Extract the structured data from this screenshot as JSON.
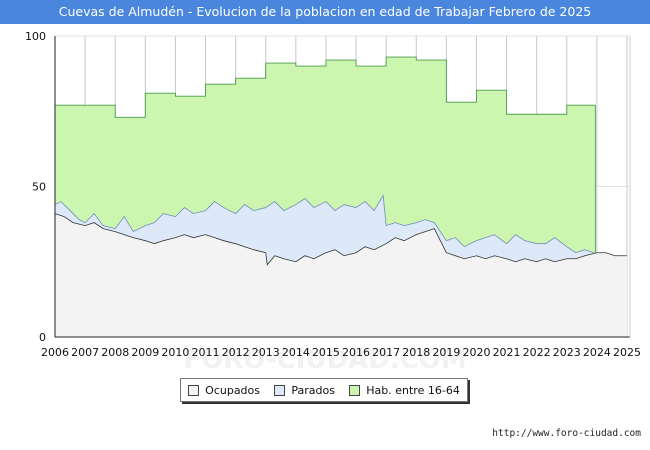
{
  "title": "Cuevas de Almudén - Evolucion de la poblacion en edad de Trabajar Febrero de 2025",
  "source": "http://www.foro-ciudad.com",
  "watermark": "FORO-CIUDAD.COM",
  "colors": {
    "title_bg": "#4a86de",
    "hab": "#ccf5b0",
    "hab_line": "#4d9a4d",
    "parados": "#dde9f8",
    "parados_line": "#6f8fb8",
    "ocupados": "#f3f3f3",
    "ocupados_line": "#333333"
  },
  "chart_data": {
    "type": "area",
    "xlabel": "",
    "ylabel": "",
    "xlim": [
      2006,
      2025.1
    ],
    "ylim": [
      0,
      100
    ],
    "yticks": [
      0,
      50,
      100
    ],
    "xticks": [
      "2006",
      "2007",
      "2008",
      "2009",
      "2010",
      "2011",
      "2012",
      "2013",
      "2014",
      "2015",
      "2016",
      "2017",
      "2018",
      "2019",
      "2020",
      "2021",
      "2022",
      "2023",
      "2024",
      "2025"
    ],
    "grid": true,
    "legend_position": "bottom",
    "legend": [
      "Ocupados",
      "Parados",
      "Hab. entre 16-64"
    ],
    "series": [
      {
        "name": "Hab. entre 16-64",
        "x": [
          2006,
          2008,
          2009,
          2010,
          2011,
          2012,
          2013,
          2014,
          2015,
          2016,
          2017,
          2018,
          2019,
          2020,
          2021,
          2022,
          2023,
          2023.95
        ],
        "values": [
          77,
          73,
          81,
          80,
          84,
          86,
          91,
          90,
          92,
          90,
          93,
          92,
          78,
          82,
          74,
          74,
          77,
          77
        ]
      },
      {
        "name": "Parados",
        "x": [
          2006,
          2006.2,
          2006.5,
          2006.8,
          2007,
          2007.3,
          2007.6,
          2008,
          2008.3,
          2008.6,
          2009,
          2009.3,
          2009.6,
          2010,
          2010.3,
          2010.6,
          2011,
          2011.3,
          2011.6,
          2012,
          2012.3,
          2012.6,
          2013,
          2013.3,
          2013.6,
          2014,
          2014.3,
          2014.6,
          2015,
          2015.3,
          2015.6,
          2016,
          2016.3,
          2016.6,
          2016.9,
          2017,
          2017.3,
          2017.6,
          2018,
          2018.3,
          2018.6,
          2019,
          2019.3,
          2019.6,
          2020,
          2020.3,
          2020.6,
          2021,
          2021.3,
          2021.6,
          2022,
          2022.3,
          2022.6,
          2023,
          2023.3,
          2023.6,
          2023.9
        ],
        "values": [
          44,
          45,
          42,
          39,
          38,
          41,
          37,
          36,
          40,
          35,
          37,
          38,
          41,
          40,
          43,
          41,
          42,
          45,
          43,
          41,
          44,
          42,
          43,
          45,
          42,
          44,
          46,
          43,
          45,
          42,
          44,
          43,
          45,
          42,
          47,
          37,
          38,
          37,
          38,
          39,
          38,
          32,
          33,
          30,
          32,
          33,
          34,
          31,
          34,
          32,
          31,
          31,
          33,
          30,
          28,
          29,
          28
        ]
      },
      {
        "name": "Ocupados",
        "x": [
          2006,
          2006.3,
          2006.6,
          2007,
          2007.3,
          2007.6,
          2008,
          2008.3,
          2008.6,
          2009,
          2009.3,
          2009.6,
          2010,
          2010.3,
          2010.6,
          2011,
          2011.3,
          2011.6,
          2012,
          2012.3,
          2012.6,
          2013,
          2013.05,
          2013.3,
          2013.6,
          2014,
          2014.3,
          2014.6,
          2015,
          2015.3,
          2015.6,
          2016,
          2016.3,
          2016.6,
          2017,
          2017.3,
          2017.6,
          2018,
          2018.3,
          2018.6,
          2019,
          2019.3,
          2019.6,
          2020,
          2020.3,
          2020.6,
          2021,
          2021.3,
          2021.6,
          2022,
          2022.3,
          2022.6,
          2023,
          2023.3,
          2023.6,
          2024,
          2024.3,
          2024.6,
          2025
        ],
        "values": [
          41,
          40,
          38,
          37,
          38,
          36,
          35,
          34,
          33,
          32,
          31,
          32,
          33,
          34,
          33,
          34,
          33,
          32,
          31,
          30,
          29,
          28,
          24,
          27,
          26,
          25,
          27,
          26,
          28,
          29,
          27,
          28,
          30,
          29,
          31,
          33,
          32,
          34,
          35,
          36,
          28,
          27,
          26,
          27,
          26,
          27,
          26,
          25,
          26,
          25,
          26,
          25,
          26,
          26,
          27,
          28,
          28,
          27,
          27
        ]
      }
    ]
  }
}
